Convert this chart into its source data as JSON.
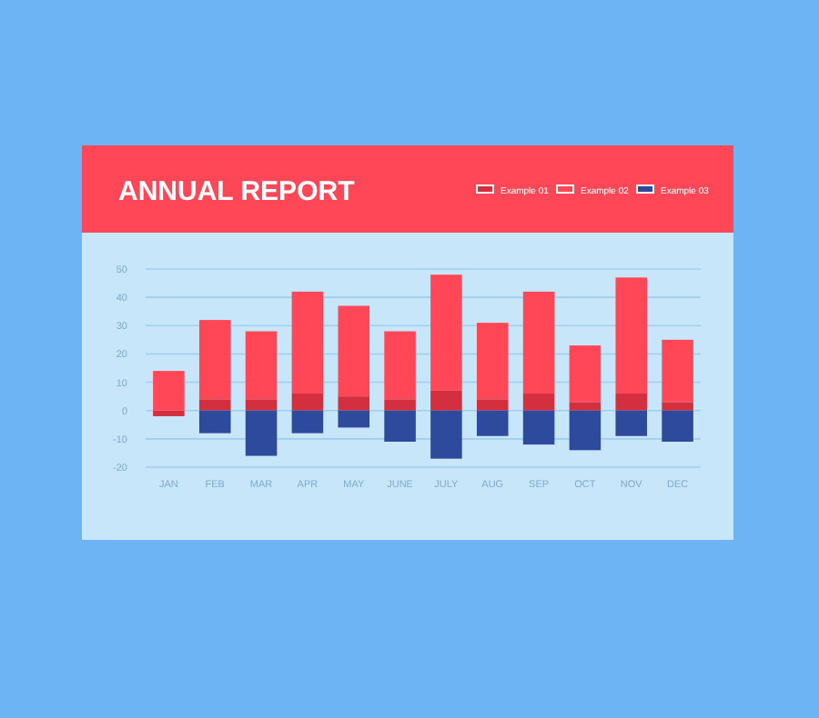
{
  "chart_data": {
    "type": "bar",
    "title": "ANNUAL REPORT",
    "categories": [
      "JAN",
      "FEB",
      "MAR",
      "APR",
      "MAY",
      "JUNE",
      "JULY",
      "AUG",
      "SEP",
      "OCT",
      "NOV",
      "DEC"
    ],
    "series": [
      {
        "name": "Example 01",
        "color": "#d32f3f",
        "values": [
          -2,
          4,
          4,
          6,
          5,
          4,
          7,
          4,
          6,
          3,
          6,
          3
        ]
      },
      {
        "name": "Example 02",
        "color": "#ff4757",
        "values": [
          14,
          28,
          24,
          36,
          32,
          24,
          41,
          27,
          36,
          20,
          41,
          22
        ]
      },
      {
        "name": "Example 03",
        "color": "#2e4a9c",
        "values": [
          null,
          -8,
          -16,
          -8,
          -6,
          -11,
          -17,
          -9,
          -12,
          -14,
          -9,
          -11
        ]
      }
    ],
    "ylim": [
      -20,
      50
    ],
    "yticks": [
      -20,
      -10,
      0,
      10,
      20,
      30,
      40,
      50
    ],
    "stacked": true,
    "grid": "y",
    "legend": "top right"
  }
}
